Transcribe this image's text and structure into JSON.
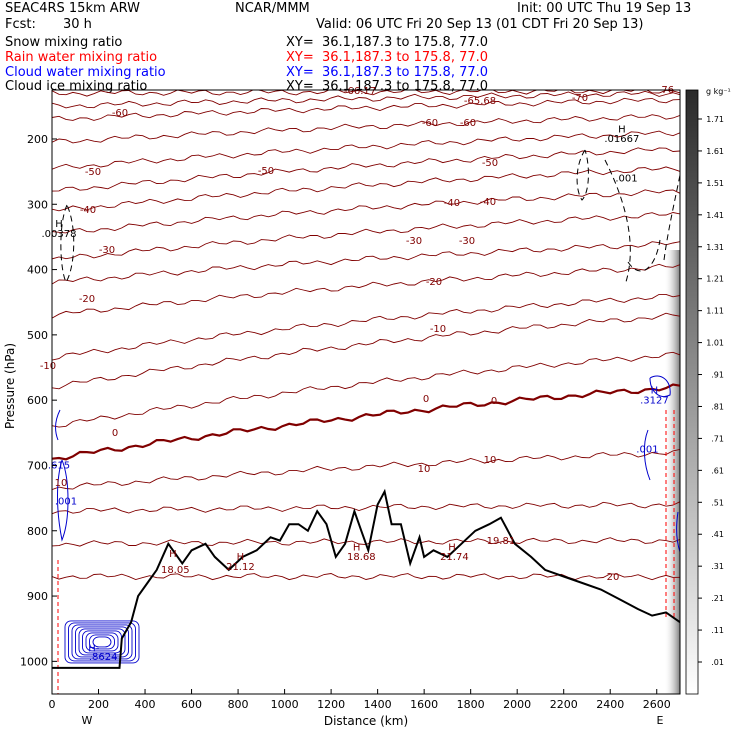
{
  "header": {
    "model": "SEAC4RS 15km ARW",
    "org": "NCAR/MMM",
    "init": "Init: 00 UTC Thu 19 Sep 13",
    "fcst_label": "Fcst:",
    "fcst_value": "30 h",
    "valid": "Valid: 06 UTC Fri 20 Sep 13 (01 CDT Fri 20 Sep 13)",
    "fields": [
      {
        "name": "Snow mixing ratio",
        "xy": "XY=  36.1,187.3 to 175.8, 77.0",
        "color": "#000000"
      },
      {
        "name": "Rain water mixing ratio",
        "xy": "XY=  36.1,187.3 to 175.8, 77.0",
        "color": "#ff0000"
      },
      {
        "name": "Cloud water mixing ratio",
        "xy": "XY=  36.1,187.3 to 175.8, 77.0",
        "color": "#0000ff"
      },
      {
        "name": "Cloud ice mixing ratio",
        "xy": "XY=  36.1,187.3 to 175.8, 77.0",
        "color": "#000000"
      }
    ]
  },
  "colorbar": {
    "unit": "g kg⁻¹",
    "ticks": [
      "1.71",
      "1.61",
      "1.51",
      "1.41",
      "1.31",
      "1.21",
      "1.11",
      "1.01",
      ".91",
      ".81",
      ".71",
      ".61",
      ".51",
      ".41",
      ".31",
      ".21",
      ".11",
      ".01"
    ]
  },
  "chart_data": {
    "type": "contour",
    "xlabel": "Distance (km)",
    "ylabel": "Pressure (hPa)",
    "xlim": [
      0,
      2700
    ],
    "ylim": [
      1050,
      125
    ],
    "x_ticks": [
      0,
      200,
      400,
      600,
      800,
      1000,
      1200,
      1400,
      1600,
      1800,
      2000,
      2200,
      2400,
      2600
    ],
    "y_ticks": [
      200,
      300,
      400,
      500,
      600,
      700,
      800,
      900,
      1000
    ],
    "end_labels": {
      "left": "W",
      "right": "E"
    },
    "temperature_contours_C": [
      20,
      10,
      0,
      -10,
      -20,
      -30,
      -40,
      -50,
      -60,
      -70
    ],
    "temperature_labels": [
      "-65.68",
      "-66.17",
      "-70",
      "-76",
      "-60",
      "-60",
      "-60",
      "-50",
      "-50",
      "-50",
      "-40",
      "-40",
      "-40",
      "-30",
      "-30",
      "-30",
      "-20",
      "-20",
      "-10",
      "-10",
      "0",
      "0",
      "0",
      "10",
      "10",
      "10",
      "20"
    ],
    "annotations": [
      {
        "text": "H",
        "x": 2450,
        "p": 190
      },
      {
        "text": ".01667",
        "x": 2450,
        "p": 205
      },
      {
        "text": ".001",
        "x": 2470,
        "p": 265
      },
      {
        "text": "H",
        "x": 30,
        "p": 335
      },
      {
        "text": ".00378",
        "x": 30,
        "p": 350
      },
      {
        "text": "H",
        "x": 2590,
        "p": 590
      },
      {
        "text": ".3127",
        "x": 2590,
        "p": 605
      },
      {
        "text": ".001",
        "x": 2560,
        "p": 680
      },
      {
        "text": ".615",
        "x": 30,
        "p": 705
      },
      {
        "text": ".001",
        "x": 60,
        "p": 760
      },
      {
        "text": "H",
        "x": 520,
        "p": 840
      },
      {
        "text": "18.05",
        "x": 530,
        "p": 865
      },
      {
        "text": "H",
        "x": 810,
        "p": 845
      },
      {
        "text": "21.12",
        "x": 810,
        "p": 860
      },
      {
        "text": "H",
        "x": 1310,
        "p": 830
      },
      {
        "text": "18.68",
        "x": 1330,
        "p": 845
      },
      {
        "text": "H",
        "x": 1720,
        "p": 830
      },
      {
        "text": "21.74",
        "x": 1730,
        "p": 845
      },
      {
        "text": "19.81",
        "x": 1930,
        "p": 820
      },
      {
        "text": "H-",
        "x": 180,
        "p": 985
      },
      {
        "text": ".8624",
        "x": 220,
        "p": 998
      }
    ],
    "terrain_surface_hPa": [
      [
        0,
        1010
      ],
      [
        290,
        1010
      ],
      [
        300,
        965
      ],
      [
        340,
        940
      ],
      [
        370,
        900
      ],
      [
        410,
        880
      ],
      [
        450,
        860
      ],
      [
        500,
        820
      ],
      [
        560,
        850
      ],
      [
        600,
        830
      ],
      [
        660,
        820
      ],
      [
        700,
        840
      ],
      [
        760,
        860
      ],
      [
        820,
        840
      ],
      [
        880,
        830
      ],
      [
        940,
        810
      ],
      [
        980,
        815
      ],
      [
        1020,
        790
      ],
      [
        1060,
        790
      ],
      [
        1100,
        800
      ],
      [
        1140,
        770
      ],
      [
        1180,
        790
      ],
      [
        1220,
        840
      ],
      [
        1260,
        820
      ],
      [
        1300,
        770
      ],
      [
        1330,
        800
      ],
      [
        1360,
        830
      ],
      [
        1400,
        760
      ],
      [
        1430,
        740
      ],
      [
        1460,
        790
      ],
      [
        1500,
        790
      ],
      [
        1540,
        850
      ],
      [
        1580,
        810
      ],
      [
        1600,
        840
      ],
      [
        1640,
        830
      ],
      [
        1700,
        840
      ],
      [
        1760,
        820
      ],
      [
        1820,
        800
      ],
      [
        1880,
        790
      ],
      [
        1930,
        780
      ],
      [
        1990,
        820
      ],
      [
        2060,
        840
      ],
      [
        2120,
        860
      ],
      [
        2200,
        870
      ],
      [
        2280,
        880
      ],
      [
        2360,
        890
      ],
      [
        2440,
        905
      ],
      [
        2520,
        920
      ],
      [
        2580,
        930
      ],
      [
        2640,
        925
      ],
      [
        2700,
        940
      ]
    ]
  }
}
